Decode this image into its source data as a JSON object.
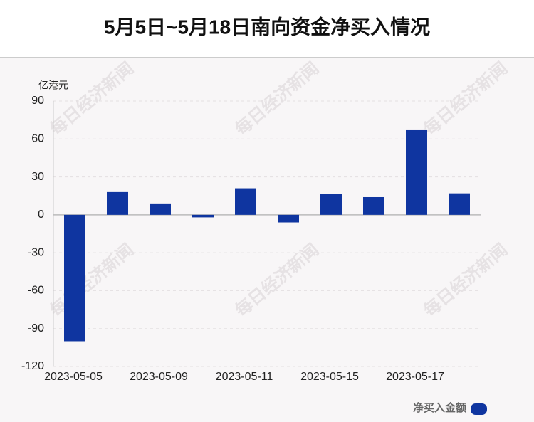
{
  "chart_data": {
    "type": "bar",
    "title": "5月5日~5月18日南向资金净买入情况",
    "y_unit": "亿港元",
    "watermark": "每日经济新闻",
    "categories": [
      "2023-05-05",
      null,
      "2023-05-09",
      null,
      "2023-05-11",
      null,
      "2023-05-15",
      null,
      "2023-05-17",
      null
    ],
    "series": [
      {
        "name": "净买入金额",
        "color": "#0f35a0",
        "values": [
          -100,
          18,
          9,
          -2,
          21,
          -6,
          16.5,
          14,
          67.5,
          17
        ]
      }
    ],
    "ylim": [
      -120,
      90
    ],
    "yticks": [
      -120,
      -90,
      -60,
      -30,
      0,
      30,
      60,
      90
    ],
    "grid": true
  }
}
